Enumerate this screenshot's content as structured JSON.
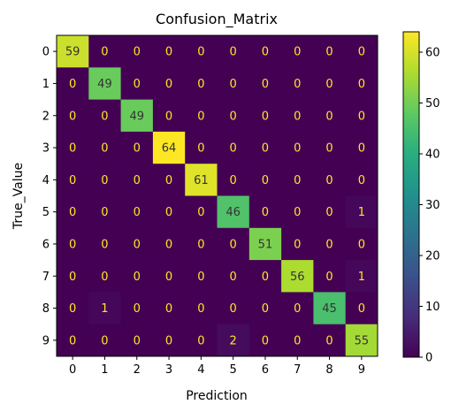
{
  "chart_data": {
    "type": "heatmap",
    "title": "Confusion_Matrix",
    "xlabel": "Prediction",
    "ylabel": "True_Value",
    "x_categories": [
      "0",
      "1",
      "2",
      "3",
      "4",
      "5",
      "6",
      "7",
      "8",
      "9"
    ],
    "y_categories": [
      "0",
      "1",
      "2",
      "3",
      "4",
      "5",
      "6",
      "7",
      "8",
      "9"
    ],
    "values": [
      [
        59,
        0,
        0,
        0,
        0,
        0,
        0,
        0,
        0,
        0
      ],
      [
        0,
        49,
        0,
        0,
        0,
        0,
        0,
        0,
        0,
        0
      ],
      [
        0,
        0,
        49,
        0,
        0,
        0,
        0,
        0,
        0,
        0
      ],
      [
        0,
        0,
        0,
        64,
        0,
        0,
        0,
        0,
        0,
        0
      ],
      [
        0,
        0,
        0,
        0,
        61,
        0,
        0,
        0,
        0,
        0
      ],
      [
        0,
        0,
        0,
        0,
        0,
        46,
        0,
        0,
        0,
        1
      ],
      [
        0,
        0,
        0,
        0,
        0,
        0,
        51,
        0,
        0,
        0
      ],
      [
        0,
        0,
        0,
        0,
        0,
        0,
        0,
        56,
        0,
        1
      ],
      [
        0,
        1,
        0,
        0,
        0,
        0,
        0,
        0,
        45,
        0
      ],
      [
        0,
        0,
        0,
        0,
        0,
        2,
        0,
        0,
        0,
        55
      ]
    ],
    "colormap": "viridis",
    "color_range": [
      0,
      64
    ],
    "colorbar_ticks": [
      0,
      10,
      20,
      30,
      40,
      50,
      60
    ],
    "grid": false
  }
}
